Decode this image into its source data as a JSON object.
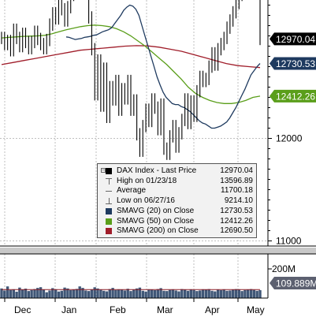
{
  "chart_data": {
    "type": "line",
    "x_labels": [
      "Dec",
      "Jan",
      "Feb",
      "Mar",
      "Apr",
      "May"
    ],
    "y_ticks": [
      "12000",
      "11000"
    ],
    "ylim": [
      10950,
      13350
    ],
    "volume_ticks": [
      "200M"
    ],
    "price": [
      12980,
      12920,
      12950,
      12860,
      13060,
      12980,
      12900,
      13020,
      12940,
      12880,
      12940,
      13040,
      12970,
      12920,
      12880,
      12960,
      13110,
      13220,
      13170,
      13340,
      13260,
      13150,
      13280,
      13400,
      13460,
      13520,
      13580,
      13500,
      13420,
      13180,
      12870,
      12430,
      12760,
      12320,
      12680,
      12210,
      12500,
      12380,
      12560,
      12280,
      12480,
      12390,
      12560,
      12280,
      12370,
      12040,
      11880,
      12120,
      12280,
      12170,
      12380,
      12300,
      12090,
      12330,
      11900,
      11850,
      12020,
      12120,
      11920,
      12050,
      12180,
      12380,
      12150,
      12360,
      12220,
      12460,
      12600,
      12560,
      12580,
      12700,
      12830,
      12720,
      12870,
      12920,
      12980,
      13080,
      13150,
      13230,
      13320,
      13400,
      13500,
      13560,
      13590,
      13540,
      13610,
      13560,
      12970.04
    ],
    "sma20": [
      12990,
      12985,
      12975,
      12965,
      12970,
      12975,
      12985,
      12990,
      12995,
      13005,
      13010,
      13025,
      13040,
      13050,
      13060,
      13080,
      13120,
      13160,
      13200,
      13250,
      13280,
      13300,
      13290,
      13260,
      13200,
      13100,
      13000,
      12900,
      12800,
      12700,
      12600,
      12520,
      12450,
      12400,
      12370,
      12340,
      12330,
      12330,
      12310,
      12300,
      12280,
      12260,
      12230,
      12200,
      12170,
      12150,
      12140,
      12120,
      12100,
      12100,
      12110,
      12120,
      12140,
      12160,
      12200,
      12250,
      12300,
      12360,
      12420,
      12480,
      12550,
      12620,
      12660,
      12700,
      12730.53
    ],
    "sma50": [
      12980,
      12985,
      12990,
      12995,
      12998,
      13000,
      13005,
      13020,
      13040,
      13060,
      13075,
      13090,
      13100,
      13105,
      13100,
      13090,
      13070,
      13040,
      13000,
      12950,
      12900,
      12840,
      12780,
      12720,
      12650,
      12580,
      12500,
      12440,
      12400,
      12370,
      12350,
      12340,
      12340,
      12350,
      12370,
      12400,
      12412.26
    ],
    "sma200": [
      12720,
      12740,
      12760,
      12780,
      12800,
      12820,
      12840,
      12860,
      12870,
      12880,
      12890,
      12900,
      12905,
      12902,
      12890,
      12870,
      12850,
      12820,
      12790,
      12760,
      12730,
      12710,
      12700,
      12690.5
    ],
    "volume": [
      66,
      52,
      80,
      55,
      60,
      44,
      72,
      58,
      65,
      48,
      55,
      62,
      70,
      75,
      58,
      40,
      52,
      68,
      60,
      45,
      50,
      72,
      66,
      54,
      58,
      63,
      80,
      70,
      52,
      48,
      60,
      74,
      66,
      58,
      50,
      46,
      62,
      70,
      55,
      60,
      58,
      52,
      64,
      48,
      57,
      66,
      72,
      50,
      45,
      60,
      58,
      54,
      62,
      68,
      50,
      48,
      56,
      60,
      52,
      46,
      62,
      58,
      50,
      60,
      55,
      48,
      52,
      60,
      58,
      62,
      50,
      46,
      58,
      54,
      60,
      50,
      52,
      57,
      62,
      60,
      48,
      55,
      58,
      62,
      56,
      50,
      54
    ],
    "badges": [
      {
        "text": "12970.04",
        "bg": "#000000",
        "fg": "#ffffff"
      },
      {
        "text": "12730.53",
        "bg": "#1e3a5f",
        "fg": "#ffffff"
      },
      {
        "text": "12412.26",
        "bg": "#5a9e1a",
        "fg": "#ffffff"
      },
      {
        "text": "109.889M",
        "bg": "#5c6070",
        "fg": "#ffffff"
      }
    ],
    "legend": [
      {
        "label": "DAX Index - Last Price",
        "value": "12970.04",
        "swatch": "#000000",
        "kind": "box"
      },
      {
        "label": "High on 01/23/18",
        "value": "13596.89",
        "swatch": "#666666",
        "kind": "high"
      },
      {
        "label": "Average",
        "value": "11700.18",
        "swatch": "#666666",
        "kind": "avg"
      },
      {
        "label": "Low on 06/27/16",
        "value": "9214.10",
        "swatch": "#666666",
        "kind": "low"
      },
      {
        "label": "SMAVG (20) on Close",
        "value": "12730.53",
        "swatch": "#1e3a5f",
        "kind": "box"
      },
      {
        "label": "SMAVG (50) on Close",
        "value": "12412.26",
        "swatch": "#5a9e1a",
        "kind": "box"
      },
      {
        "label": "SMAVG (200) on Close",
        "value": "12690.50",
        "swatch": "#a01d2a",
        "kind": "box"
      }
    ],
    "colors": {
      "price": "#000000",
      "sma20": "#1e3a5f",
      "sma50": "#5a9e1a",
      "sma200": "#a01d2a",
      "volume_bar": "#1e3a5f",
      "grid": "#bfbfbf"
    }
  }
}
